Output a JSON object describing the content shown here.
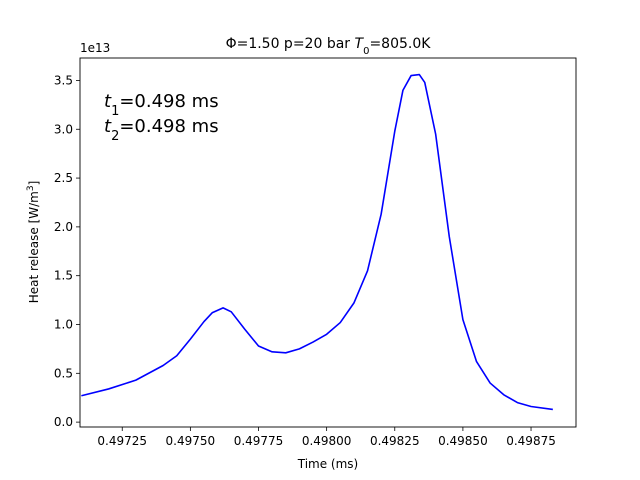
{
  "chart_data": {
    "type": "line",
    "title_pre": "Φ=1.50 p=20 bar ",
    "title_var": "T",
    "title_sub": "0",
    "title_post": "=805.0K",
    "xlabel": "Time (ms)",
    "ylabel_pre": "Heat release [W/m",
    "ylabel_sup": "3",
    "ylabel_post": "]",
    "y_offset_text": "1e13",
    "xlim": [
      0.497095,
      0.498915
    ],
    "ylim": [
      -0.05,
      3.73
    ],
    "x_ticks": [
      0.49725,
      0.4975,
      0.49775,
      0.498,
      0.49825,
      0.4985,
      0.49875
    ],
    "x_tick_labels": [
      "0.49725",
      "0.49750",
      "0.49775",
      "0.49800",
      "0.49825",
      "0.49850",
      "0.49875"
    ],
    "y_ticks": [
      0.0,
      0.5,
      1.0,
      1.5,
      2.0,
      2.5,
      3.0,
      3.5
    ],
    "y_tick_labels": [
      "0.0",
      "0.5",
      "1.0",
      "1.5",
      "2.0",
      "2.5",
      "3.0",
      "3.5"
    ],
    "annotations": [
      {
        "var": "t",
        "sub": "1",
        "text": "=0.498 ms"
      },
      {
        "var": "t",
        "sub": "2",
        "text": "=0.498 ms"
      }
    ],
    "series": [
      {
        "color": "#0000ff",
        "x": [
          0.4971,
          0.4972,
          0.4973,
          0.4974,
          0.49745,
          0.4975,
          0.49755,
          0.49758,
          0.49762,
          0.49765,
          0.4977,
          0.49775,
          0.4978,
          0.49785,
          0.4979,
          0.49795,
          0.498,
          0.49805,
          0.4981,
          0.49815,
          0.4982,
          0.49825,
          0.49828,
          0.49831,
          0.49834,
          0.49836,
          0.4984,
          0.49845,
          0.4985,
          0.49855,
          0.4986,
          0.49865,
          0.4987,
          0.49875,
          0.49883
        ],
        "y": [
          0.27,
          0.34,
          0.43,
          0.58,
          0.68,
          0.85,
          1.03,
          1.12,
          1.17,
          1.13,
          0.95,
          0.78,
          0.72,
          0.71,
          0.75,
          0.82,
          0.9,
          1.02,
          1.22,
          1.55,
          2.13,
          2.98,
          3.4,
          3.55,
          3.56,
          3.48,
          2.95,
          1.9,
          1.05,
          0.62,
          0.4,
          0.28,
          0.2,
          0.16,
          0.13
        ]
      }
    ]
  }
}
